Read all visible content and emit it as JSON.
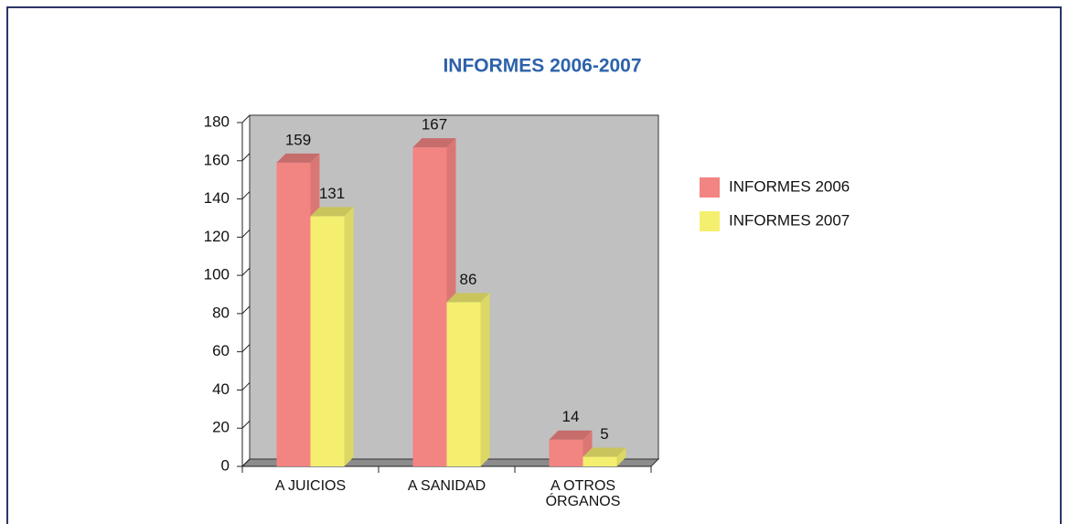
{
  "chart_data": {
    "type": "bar3d",
    "title": "INFORMES 2006-2007",
    "categories": [
      "A JUICIOS",
      "A SANIDAD",
      "A OTROS ÓRGANOS"
    ],
    "series": [
      {
        "name": "INFORMES 2006",
        "color": "#f28482",
        "values": [
          159,
          167,
          14
        ]
      },
      {
        "name": "INFORMES 2007",
        "color": "#f5ef70",
        "values": [
          131,
          86,
          5
        ]
      }
    ],
    "ylim": [
      0,
      180
    ],
    "yticks": [
      0,
      20,
      40,
      60,
      80,
      100,
      120,
      140,
      160,
      180
    ],
    "grid": false,
    "legend": "right"
  }
}
